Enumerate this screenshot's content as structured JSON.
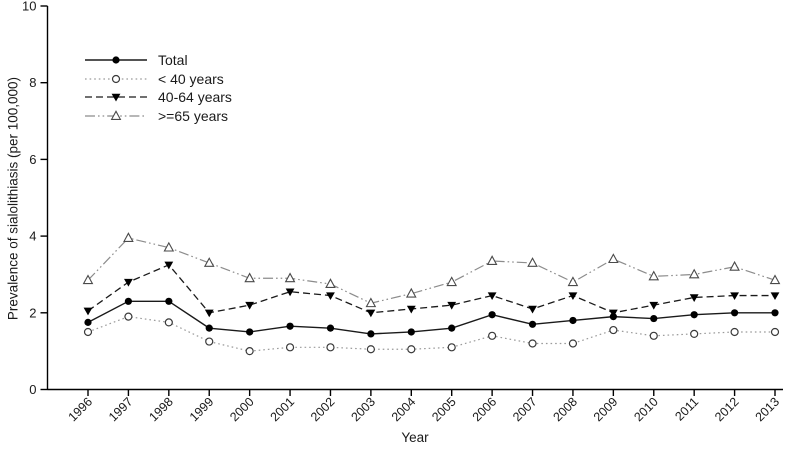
{
  "figure": {
    "background": "#ffffff",
    "axis_color": "#000000",
    "text_color": "#1a1a1a"
  },
  "chart_data": {
    "type": "line",
    "title": "",
    "xlabel": "Year",
    "ylabel": "Prevalence of sialolithiasis (per 100,000)",
    "ylim": [
      0,
      10
    ],
    "yticks": [
      0,
      2,
      4,
      6,
      8,
      10
    ],
    "grid": false,
    "legend_position": "upper-left-inside",
    "x": [
      1996,
      1997,
      1998,
      1999,
      2000,
      2001,
      2002,
      2003,
      2004,
      2005,
      2006,
      2007,
      2008,
      2009,
      2010,
      2011,
      2012,
      2013
    ],
    "series": [
      {
        "name": "Total",
        "marker": "filled-circle",
        "line_style": "solid",
        "color": "#1a1a1a",
        "values": [
          1.75,
          2.3,
          2.3,
          1.6,
          1.5,
          1.65,
          1.6,
          1.45,
          1.5,
          1.6,
          1.95,
          1.7,
          1.8,
          1.9,
          1.85,
          1.95,
          2.0,
          2.0
        ]
      },
      {
        "name": "< 40 years",
        "marker": "open-circle",
        "line_style": "dotted",
        "color": "#9a9a9a",
        "values": [
          1.5,
          1.9,
          1.75,
          1.25,
          1.0,
          1.1,
          1.1,
          1.05,
          1.05,
          1.1,
          1.4,
          1.2,
          1.2,
          1.55,
          1.4,
          1.45,
          1.5,
          1.5
        ]
      },
      {
        "name": "40-64 years",
        "marker": "filled-triangle-down",
        "line_style": "dashed",
        "color": "#1a1a1a",
        "values": [
          2.05,
          2.8,
          3.25,
          2.0,
          2.2,
          2.55,
          2.45,
          2.0,
          2.1,
          2.2,
          2.45,
          2.1,
          2.45,
          2.0,
          2.2,
          2.4,
          2.45,
          2.45
        ]
      },
      {
        "name": ">=65 years",
        "marker": "open-triangle-up",
        "line_style": "dash-dot-dot",
        "color": "#8c8c8c",
        "values": [
          2.85,
          3.95,
          3.7,
          3.3,
          2.9,
          2.9,
          2.75,
          2.25,
          2.5,
          2.8,
          3.35,
          3.3,
          2.8,
          3.4,
          2.95,
          3.0,
          3.2,
          2.85
        ]
      }
    ]
  }
}
